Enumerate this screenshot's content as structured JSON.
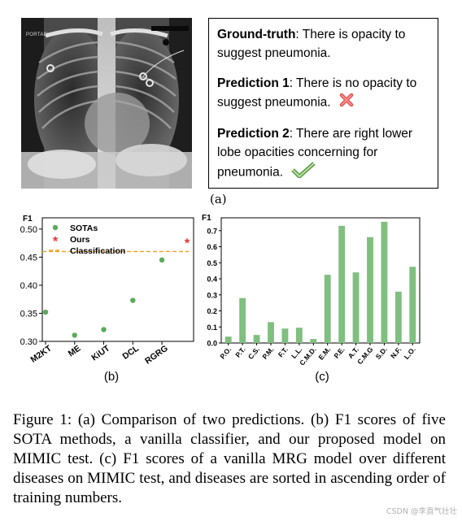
{
  "panel_a": {
    "image_tag": "PORTABLE",
    "ground_truth": {
      "label": "Ground-truth",
      "text": ": There is opacity to suggest pneumonia."
    },
    "prediction_1": {
      "label": "Prediction 1",
      "text": ": There is no opacity to suggest pneumonia."
    },
    "prediction_2": {
      "label": "Prediction 2",
      "text": ": There are right lower lobe opacities concerning for pneumonia."
    },
    "wrong_icon": "cross-icon",
    "right_icon": "check-icon",
    "subfig_label": "(a)"
  },
  "panel_b": {
    "subfig_label": "(b)"
  },
  "panel_c": {
    "subfig_label": "(c)"
  },
  "chart_data": [
    {
      "type": "scatter",
      "ylabel": "F1",
      "ylim": [
        0.3,
        0.52
      ],
      "yticks": [
        0.3,
        0.35,
        0.4,
        0.45,
        0.5
      ],
      "categories": [
        "M2KT",
        "ME",
        "KiUT",
        "DCL",
        "RGRG"
      ],
      "series": [
        {
          "name": "SOTAs",
          "values": [
            0.352,
            0.311,
            0.321,
            0.373,
            0.445
          ],
          "color": "#5aaa5a",
          "marker": "circle"
        },
        {
          "name": "Ours",
          "values": [
            0.479
          ],
          "color": "#e8464e",
          "marker": "star"
        }
      ],
      "reference_line": {
        "name": "Classification",
        "value": 0.46,
        "color": "#f0a020",
        "style": "dashed"
      },
      "legend": "top-left"
    },
    {
      "type": "bar",
      "ylabel": "F1",
      "ylim": [
        0,
        0.78
      ],
      "yticks": [
        0.0,
        0.1,
        0.2,
        0.3,
        0.4,
        0.5,
        0.6,
        0.7
      ],
      "categories": [
        "P.O.",
        "P.T.",
        "C.S.",
        "P.M.",
        "F.T.",
        "L.L.",
        "C.M.D.",
        "E.M.",
        "P.E.",
        "A.T.",
        "C.M.G",
        "S.D.",
        "N.F.",
        "L.O."
      ],
      "values": [
        0.04,
        0.28,
        0.05,
        0.13,
        0.09,
        0.095,
        0.025,
        0.425,
        0.73,
        0.44,
        0.66,
        0.755,
        0.32,
        0.475
      ],
      "color": "#7fbf7f"
    }
  ],
  "caption": "Figure 1: (a) Comparison of two predictions. (b) F1 scores of five SOTA methods, a vanilla classifier, and our proposed model on MIMIC test. (c) F1 scores of a vanilla MRG model over different diseases on MIMIC test, and diseases are sorted in ascending order of training numbers.",
  "watermark": "CSDN @李直气壮壮"
}
